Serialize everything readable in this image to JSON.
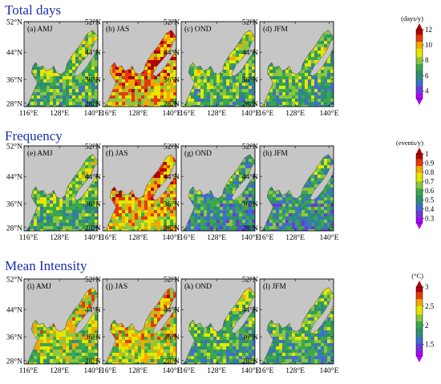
{
  "figure": {
    "rows": [
      {
        "title": "Total days",
        "colorbar": {
          "unit": "(days/y)",
          "ticks": [
            "12",
            "10",
            "8",
            "6",
            "4"
          ],
          "range": [
            3,
            12
          ],
          "extend": "both"
        },
        "panels": [
          {
            "label": "(a) AMJ",
            "level": 0.45
          },
          {
            "label": "(b) JAS",
            "level": 0.85
          },
          {
            "label": "(c) OND",
            "level": 0.45
          },
          {
            "label": "(d) JFM",
            "level": 0.42
          }
        ]
      },
      {
        "title": "Frequency",
        "colorbar": {
          "unit": "(events/y)",
          "ticks": [
            "1",
            "0.9",
            "0.8",
            "0.7",
            "0.6",
            "0.5",
            "0.4",
            "0.3"
          ],
          "range": [
            0.25,
            1.0
          ],
          "extend": "both"
        },
        "panels": [
          {
            "label": "(e) AMJ",
            "level": 0.45
          },
          {
            "label": "(f) JAS",
            "level": 0.8
          },
          {
            "label": "(g) OND",
            "level": 0.3
          },
          {
            "label": "(h) JFM",
            "level": 0.28
          }
        ]
      },
      {
        "title": "Mean Intensity",
        "colorbar": {
          "unit": "(°C)",
          "ticks": [
            "3",
            "2.5",
            "2",
            "1.5"
          ],
          "range": [
            1.2,
            3.0
          ],
          "extend": "both"
        },
        "panels": [
          {
            "label": "(i) AMJ",
            "level": 0.62
          },
          {
            "label": "(j) JAS",
            "level": 0.7
          },
          {
            "label": "(k) OND",
            "level": 0.42
          },
          {
            "label": "(l) JFM",
            "level": 0.4
          }
        ]
      }
    ],
    "lat_ticks": [
      "52°N",
      "44°N",
      "36°N",
      "28°N"
    ],
    "lon_ticks": [
      "116°E",
      "128°E",
      "140°E"
    ],
    "colors": {
      "land": "#c6c6c6",
      "title": "#1c2fae",
      "colormap": [
        "#b000ff",
        "#6a3bd6",
        "#3f6dd1",
        "#2c8f74",
        "#3aa84a",
        "#8cc63f",
        "#e6e600",
        "#f6a800",
        "#e53b0c",
        "#b00000"
      ]
    }
  }
}
